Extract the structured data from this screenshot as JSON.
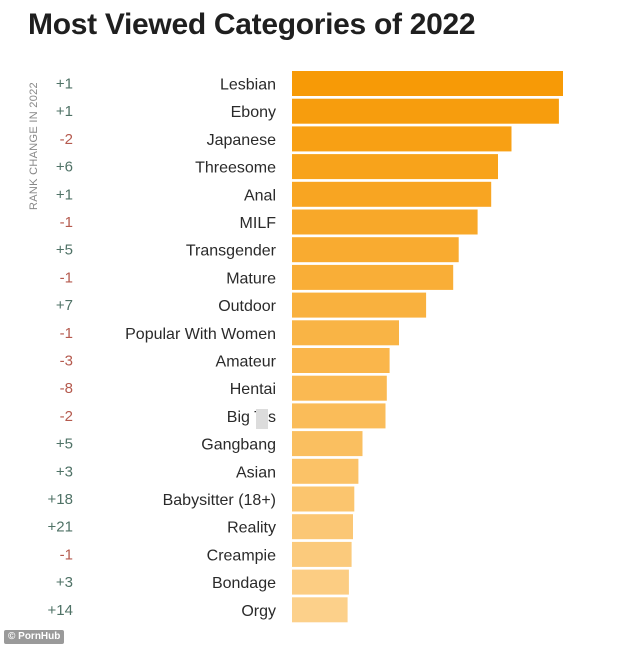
{
  "chart_data": {
    "type": "bar",
    "orientation": "horizontal",
    "title": "Most Viewed Categories of 2022",
    "change_axis_label": "RANK CHANGE IN 2022",
    "categories": [
      "Lesbian",
      "Ebony",
      "Japanese",
      "Threesome",
      "Anal",
      "MILF",
      "Transgender",
      "Mature",
      "Outdoor",
      "Popular With Women",
      "Amateur",
      "Hentai",
      "Big Tits",
      "Gangbang",
      "Asian",
      "Babysitter (18+)",
      "Reality",
      "Creampie",
      "Bondage",
      "Orgy"
    ],
    "display_labels": [
      "Lesbian",
      "Ebony",
      "Japanese",
      "Threesome",
      "Anal",
      "MILF",
      "Transgender",
      "Mature",
      "Outdoor",
      "Popular With Women",
      "Amateur",
      "Hentai",
      "Big T  s",
      "Gangbang",
      "Asian",
      "Babysitter (18+)",
      "Reality",
      "Creampie",
      "Bondage",
      "Orgy"
    ],
    "rank_change": [
      "+1",
      "+1",
      "-2",
      "+6",
      "+1",
      "-1",
      "+5",
      "-1",
      "+7",
      "-1",
      "-3",
      "-8",
      "-2",
      "+5",
      "+3",
      "+18",
      "+21",
      "-1",
      "+3",
      "+14"
    ],
    "values": [
      100,
      98.5,
      81,
      76,
      73.5,
      68.5,
      61.5,
      59.5,
      49.5,
      39.5,
      36,
      35,
      34.5,
      26,
      24.5,
      23,
      22.5,
      22,
      21,
      20.5
    ],
    "xlim": [
      0,
      100
    ],
    "xlabel": "",
    "ylabel": ""
  },
  "colors": {
    "bar_top": "#f79a06",
    "bar_bottom": "#fcd08a",
    "positive_change": "#4f7266",
    "negative_change": "#b55a4e",
    "title": "#1f1f1f"
  },
  "watermark": "© PornHub"
}
